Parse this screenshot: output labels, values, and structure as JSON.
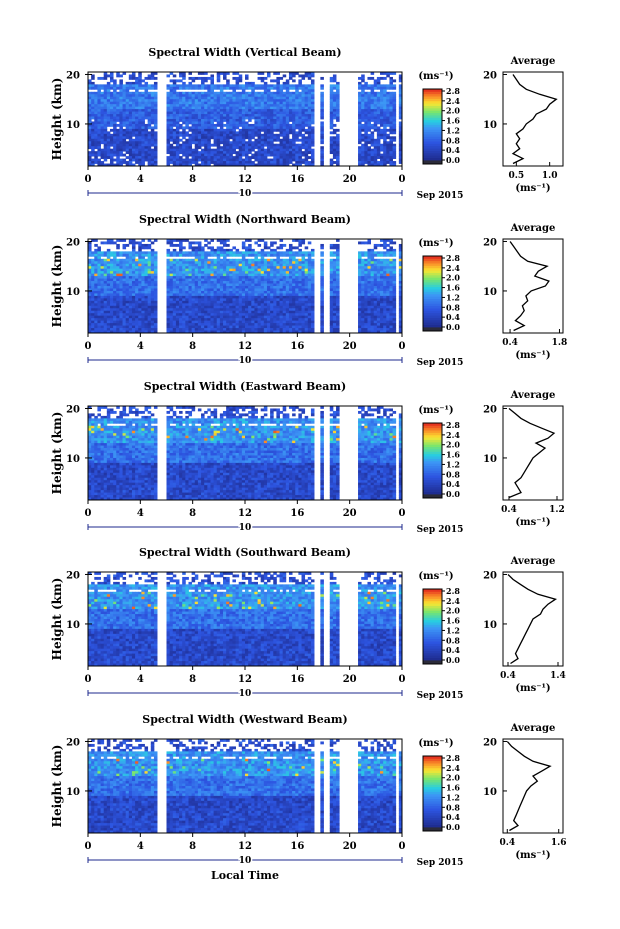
{
  "figure": {
    "colorbar_unit": "(ms⁻¹)",
    "avg_title": "Average",
    "avg_xlabel": "(ms⁻¹)",
    "ylabel": "Height (km)",
    "xlabel": "Local Time",
    "date_mark": "10",
    "date_label": "Sep 2015",
    "colors": {
      "low": "#1e2a8c",
      "mid": "#3c78e6",
      "high": "#e63c28"
    }
  },
  "chart_data": [
    {
      "type": "heatmap",
      "title": "Spectral Width (Vertical Beam)",
      "xlabel": "",
      "ylabel": "Height (km)",
      "xticks": [
        "0",
        "4",
        "8",
        "12",
        "16",
        "20",
        "0"
      ],
      "xlim": [
        0,
        24
      ],
      "yticks": [
        "10",
        "20"
      ],
      "ylim": [
        1.5,
        20.5
      ],
      "colorbar": {
        "label": "(ms⁻¹)",
        "ticks": [
          "0.0",
          "0.4",
          "0.8",
          "1.2",
          "1.6",
          "2.0",
          "2.4",
          "2.8"
        ],
        "range": [
          0,
          3.0
        ]
      },
      "gaps_local_time": [
        [
          5.3,
          6.0
        ],
        [
          17.4,
          17.7
        ],
        [
          18.0,
          18.4
        ],
        [
          19.2,
          20.6
        ],
        [
          23.5,
          23.8
        ]
      ],
      "average_profile": {
        "xticks": [
          "0.5",
          "1.0"
        ],
        "xlim": [
          0.3,
          1.2
        ],
        "points": [
          [
            0.45,
            2
          ],
          [
            0.6,
            3
          ],
          [
            0.45,
            4
          ],
          [
            0.55,
            5
          ],
          [
            0.5,
            6
          ],
          [
            0.55,
            7
          ],
          [
            0.5,
            8
          ],
          [
            0.6,
            9
          ],
          [
            0.65,
            10
          ],
          [
            0.75,
            11
          ],
          [
            0.8,
            12
          ],
          [
            0.95,
            13
          ],
          [
            1.0,
            14
          ],
          [
            1.1,
            15
          ],
          [
            0.85,
            16
          ],
          [
            0.65,
            17
          ],
          [
            0.55,
            18
          ],
          [
            0.5,
            19
          ],
          [
            0.45,
            20
          ]
        ]
      }
    },
    {
      "type": "heatmap",
      "title": "Spectral Width (Northward Beam)",
      "xlabel": "",
      "ylabel": "Height (km)",
      "xticks": [
        "0",
        "4",
        "8",
        "12",
        "16",
        "20",
        "0"
      ],
      "xlim": [
        0,
        24
      ],
      "yticks": [
        "10",
        "20"
      ],
      "ylim": [
        1.5,
        20.5
      ],
      "colorbar": {
        "label": "(ms⁻¹)",
        "ticks": [
          "0.0",
          "0.4",
          "0.8",
          "1.2",
          "1.6",
          "2.0",
          "2.4",
          "2.8"
        ],
        "range": [
          0,
          3.0
        ]
      },
      "gaps_local_time": [
        [
          5.3,
          6.0
        ],
        [
          17.4,
          17.7
        ],
        [
          18.0,
          18.4
        ],
        [
          19.2,
          20.6
        ],
        [
          23.5,
          23.8
        ]
      ],
      "average_profile": {
        "xticks": [
          "0.4",
          "1.8"
        ],
        "xlim": [
          0.2,
          1.9
        ],
        "points": [
          [
            0.5,
            2
          ],
          [
            0.8,
            3
          ],
          [
            0.55,
            4
          ],
          [
            0.7,
            5
          ],
          [
            0.8,
            6
          ],
          [
            0.75,
            7
          ],
          [
            0.9,
            8
          ],
          [
            0.85,
            9
          ],
          [
            1.0,
            10
          ],
          [
            1.4,
            11
          ],
          [
            1.5,
            12
          ],
          [
            1.1,
            13
          ],
          [
            1.2,
            14
          ],
          [
            1.45,
            15
          ],
          [
            0.9,
            16
          ],
          [
            0.7,
            17
          ],
          [
            0.6,
            18
          ],
          [
            0.5,
            19
          ],
          [
            0.4,
            20
          ]
        ]
      }
    },
    {
      "type": "heatmap",
      "title": "Spectral Width (Eastward Beam)",
      "xlabel": "",
      "ylabel": "Height (km)",
      "xticks": [
        "0",
        "4",
        "8",
        "12",
        "16",
        "20",
        "0"
      ],
      "xlim": [
        0,
        24
      ],
      "yticks": [
        "10",
        "20"
      ],
      "ylim": [
        1.5,
        20.5
      ],
      "colorbar": {
        "label": "(ms⁻¹)",
        "ticks": [
          "0.0",
          "0.4",
          "0.8",
          "1.2",
          "1.6",
          "2.0",
          "2.4",
          "2.8"
        ],
        "range": [
          0,
          3.0
        ]
      },
      "gaps_local_time": [
        [
          5.3,
          6.0
        ],
        [
          17.4,
          17.7
        ],
        [
          18.0,
          18.4
        ],
        [
          19.2,
          20.6
        ],
        [
          23.5,
          23.8
        ]
      ],
      "average_profile": {
        "xticks": [
          "0.4",
          "1.2"
        ],
        "xlim": [
          0.3,
          1.3
        ],
        "points": [
          [
            0.4,
            2
          ],
          [
            0.6,
            3
          ],
          [
            0.55,
            4
          ],
          [
            0.5,
            5
          ],
          [
            0.6,
            6
          ],
          [
            0.65,
            7
          ],
          [
            0.7,
            8
          ],
          [
            0.75,
            9
          ],
          [
            0.8,
            10
          ],
          [
            0.9,
            11
          ],
          [
            1.0,
            12
          ],
          [
            0.85,
            13
          ],
          [
            1.05,
            14
          ],
          [
            1.15,
            15
          ],
          [
            0.95,
            16
          ],
          [
            0.75,
            17
          ],
          [
            0.6,
            18
          ],
          [
            0.5,
            19
          ],
          [
            0.4,
            20
          ]
        ]
      }
    },
    {
      "type": "heatmap",
      "title": "Spectral Width (Southward Beam)",
      "xlabel": "",
      "ylabel": "Height (km)",
      "xticks": [
        "0",
        "4",
        "8",
        "12",
        "16",
        "20",
        "0"
      ],
      "xlim": [
        0,
        24
      ],
      "yticks": [
        "10",
        "20"
      ],
      "ylim": [
        1.5,
        20.5
      ],
      "colorbar": {
        "label": "(ms⁻¹)",
        "ticks": [
          "0.0",
          "0.4",
          "0.8",
          "1.2",
          "1.6",
          "2.0",
          "2.4",
          "2.8"
        ],
        "range": [
          0,
          3.0
        ]
      },
      "gaps_local_time": [
        [
          5.3,
          6.0
        ],
        [
          17.4,
          17.7
        ],
        [
          18.0,
          18.4
        ],
        [
          19.2,
          20.6
        ],
        [
          23.5,
          23.8
        ]
      ],
      "average_profile": {
        "xticks": [
          "0.4",
          "1.4"
        ],
        "xlim": [
          0.3,
          1.5
        ],
        "points": [
          [
            0.45,
            2
          ],
          [
            0.6,
            3
          ],
          [
            0.55,
            4
          ],
          [
            0.6,
            5
          ],
          [
            0.65,
            6
          ],
          [
            0.7,
            7
          ],
          [
            0.75,
            8
          ],
          [
            0.8,
            9
          ],
          [
            0.85,
            10
          ],
          [
            0.9,
            11
          ],
          [
            1.05,
            12
          ],
          [
            1.1,
            13
          ],
          [
            1.2,
            14
          ],
          [
            1.35,
            15
          ],
          [
            1.0,
            16
          ],
          [
            0.8,
            17
          ],
          [
            0.65,
            18
          ],
          [
            0.5,
            19
          ],
          [
            0.4,
            20
          ]
        ]
      }
    },
    {
      "type": "heatmap",
      "title": "Spectral Width (Westward Beam)",
      "xlabel": "Local Time",
      "ylabel": "Height (km)",
      "xticks": [
        "0",
        "4",
        "8",
        "12",
        "16",
        "20",
        "0"
      ],
      "xlim": [
        0,
        24
      ],
      "yticks": [
        "10",
        "20"
      ],
      "ylim": [
        1.5,
        20.5
      ],
      "colorbar": {
        "label": "(ms⁻¹)",
        "ticks": [
          "0.0",
          "0.4",
          "0.8",
          "1.2",
          "1.6",
          "2.0",
          "2.4",
          "2.8"
        ],
        "range": [
          0,
          3.0
        ]
      },
      "gaps_local_time": [
        [
          5.3,
          6.0
        ],
        [
          17.4,
          17.7
        ],
        [
          18.0,
          18.4
        ],
        [
          19.2,
          20.6
        ],
        [
          23.5,
          23.8
        ]
      ],
      "average_profile": {
        "xticks": [
          "0.4",
          "1.6"
        ],
        "xlim": [
          0.3,
          1.7
        ],
        "points": [
          [
            0.45,
            2
          ],
          [
            0.65,
            3
          ],
          [
            0.55,
            4
          ],
          [
            0.6,
            5
          ],
          [
            0.65,
            6
          ],
          [
            0.7,
            7
          ],
          [
            0.75,
            8
          ],
          [
            0.8,
            9
          ],
          [
            0.85,
            10
          ],
          [
            0.95,
            11
          ],
          [
            1.1,
            12
          ],
          [
            1.0,
            13
          ],
          [
            1.2,
            14
          ],
          [
            1.4,
            15
          ],
          [
            1.0,
            16
          ],
          [
            0.8,
            17
          ],
          [
            0.65,
            18
          ],
          [
            0.5,
            19
          ],
          [
            0.4,
            20
          ]
        ]
      }
    }
  ]
}
